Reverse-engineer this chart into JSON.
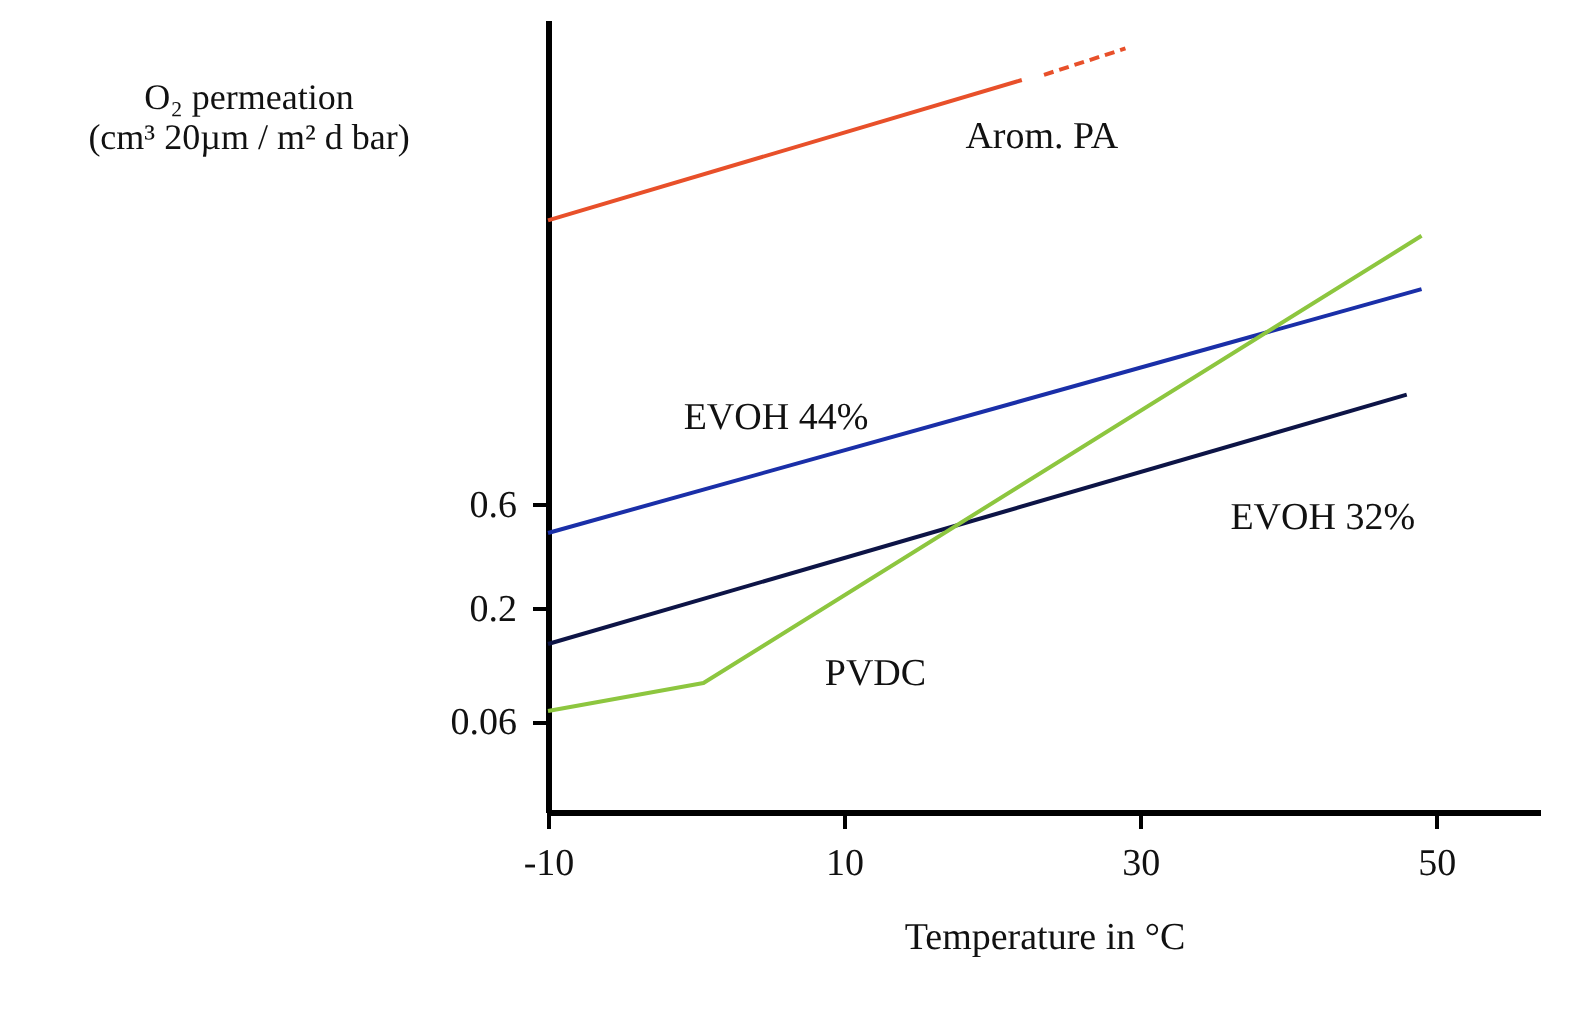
{
  "chart_data": {
    "type": "line",
    "xlabel": "Temperature in °C",
    "ylabel": "O₂ permeation\n(cm³ 20µm / m² d bar)",
    "series": [
      {
        "name": "Arom. PA",
        "color": "#e8502a",
        "x": [
          -10,
          22
        ],
        "values": [
          12,
          53
        ],
        "line_style": "solid"
      },
      {
        "color": "#e8502a",
        "x": [
          23.5,
          29
        ],
        "values": [
          56,
          74
        ],
        "line_style": "dashed"
      },
      {
        "name": "EVOH 44%",
        "color": "#1a2fa8",
        "x": [
          -10,
          49
        ],
        "values": [
          0.44,
          5.8
        ],
        "line_style": "solid"
      },
      {
        "name": "EVOH 32%",
        "color": "#0d1446",
        "x": [
          -10,
          48
        ],
        "values": [
          0.136,
          1.9
        ],
        "line_style": "solid"
      },
      {
        "name": "PVDC",
        "color": "#8dc63f",
        "x": [
          -10,
          0.5,
          49
        ],
        "values": [
          0.067,
          0.09,
          10.2
        ],
        "line_style": "solid"
      }
    ],
    "log": "y",
    "xlim": [
      -10,
      57
    ],
    "ylim": [
      0.023,
      100
    ],
    "xticks": [
      -10,
      10,
      30,
      50
    ],
    "yticks": [
      0.06,
      0.2,
      0.6
    ],
    "grid": false
  }
}
